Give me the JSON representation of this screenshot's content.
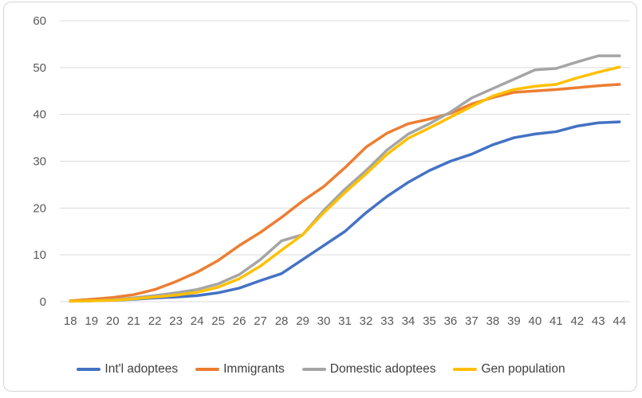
{
  "chart_data": {
    "type": "line",
    "x_label_values": [
      "18",
      "19",
      "20",
      "21",
      "22",
      "23",
      "24",
      "25",
      "26",
      "27",
      "28",
      "29",
      "30",
      "31",
      "32",
      "33",
      "34",
      "35",
      "36",
      "37",
      "38",
      "39",
      "40",
      "41",
      "42",
      "43",
      "44"
    ],
    "x": [
      18,
      19,
      20,
      21,
      22,
      23,
      24,
      25,
      26,
      27,
      28,
      29,
      30,
      31,
      32,
      33,
      34,
      35,
      36,
      37,
      38,
      39,
      40,
      41,
      42,
      43,
      44
    ],
    "series": [
      {
        "name": "Int'l adoptees",
        "color": "#4472C4",
        "values": [
          0.1,
          0.2,
          0.3,
          0.5,
          0.8,
          1.0,
          1.3,
          1.9,
          2.9,
          4.5,
          6.0,
          9.0,
          12.0,
          15.0,
          19.0,
          22.5,
          25.5,
          28.0,
          30.0,
          31.5,
          33.5,
          35.0,
          35.8,
          36.3,
          37.5,
          38.2,
          38.4
        ]
      },
      {
        "name": "Immigrants",
        "color": "#ED7D31",
        "values": [
          0.2,
          0.5,
          0.9,
          1.5,
          2.6,
          4.3,
          6.3,
          8.8,
          12.0,
          14.8,
          18.0,
          21.5,
          24.6,
          28.6,
          33.0,
          36.0,
          38.0,
          39.0,
          40.2,
          42.2,
          43.6,
          44.7,
          45.0,
          45.3,
          45.7,
          46.1,
          46.4
        ]
      },
      {
        "name": "Domestic adoptees",
        "color": "#A5A5A5",
        "values": [
          0.1,
          0.2,
          0.4,
          0.8,
          1.3,
          1.9,
          2.6,
          3.8,
          5.8,
          9.0,
          13.0,
          14.3,
          19.5,
          24.0,
          28.0,
          32.4,
          35.8,
          38.0,
          40.5,
          43.5,
          45.5,
          47.5,
          49.5,
          49.8,
          51.2,
          52.5,
          52.5
        ]
      },
      {
        "name": "Gen population",
        "color": "#FFC000",
        "values": [
          0.1,
          0.2,
          0.3,
          0.6,
          1.0,
          1.4,
          2.0,
          3.1,
          4.9,
          7.6,
          11.0,
          14.3,
          19.0,
          23.3,
          27.3,
          31.5,
          34.9,
          37.1,
          39.4,
          41.7,
          43.9,
          45.3,
          46.0,
          46.4,
          47.8,
          49.0,
          50.1
        ]
      }
    ],
    "yticks": [
      0,
      10,
      20,
      30,
      40,
      50,
      60
    ],
    "ylim": [
      0,
      60
    ],
    "grid": true,
    "legend_position": "bottom",
    "title": "",
    "xlabel": "",
    "ylabel": ""
  },
  "style": {
    "gridline_color": "#d9d9d9",
    "tick_label_color": "#595959",
    "legend_text_color": "#404040",
    "frame_border_color": "#d6d6d6",
    "background": "#ffffff"
  }
}
